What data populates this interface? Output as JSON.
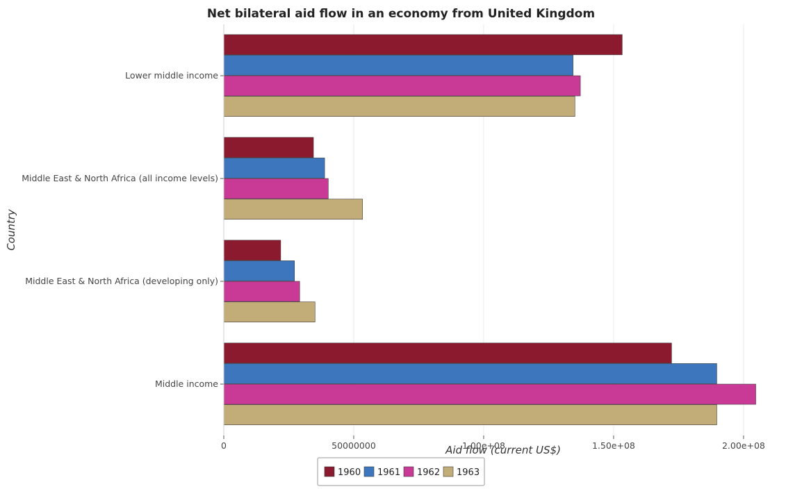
{
  "chart_data": {
    "type": "bar",
    "orientation": "horizontal",
    "title": "Net bilateral aid flow in an economy from United Kingdom",
    "xlabel": "Aid flow (current US$)",
    "ylabel": "Country",
    "xlim": [
      0,
      215000000
    ],
    "x_ticks": [
      0,
      50000000,
      100000000,
      150000000,
      200000000
    ],
    "x_tick_labels": [
      "0",
      "50000000",
      "1.00e+08",
      "1.50e+08",
      "2.00e+08"
    ],
    "grid": true,
    "legend_position": "bottom-center",
    "categories": [
      "Lower middle income",
      "Middle East & North Africa (all income levels)",
      "Middle East & North Africa (developing only)",
      "Middle income"
    ],
    "series": [
      {
        "name": "1960",
        "color": "#8b1a2e",
        "values": [
          153300000,
          34500000,
          21900000,
          172300000
        ]
      },
      {
        "name": "1961",
        "color": "#3d76bd",
        "values": [
          134400000,
          38800000,
          27200000,
          189700000
        ]
      },
      {
        "name": "1962",
        "color": "#c93a96",
        "values": [
          137200000,
          40200000,
          29200000,
          204700000
        ]
      },
      {
        "name": "1963",
        "color": "#c2ad78",
        "values": [
          135100000,
          53400000,
          35100000,
          189700000
        ]
      }
    ]
  }
}
